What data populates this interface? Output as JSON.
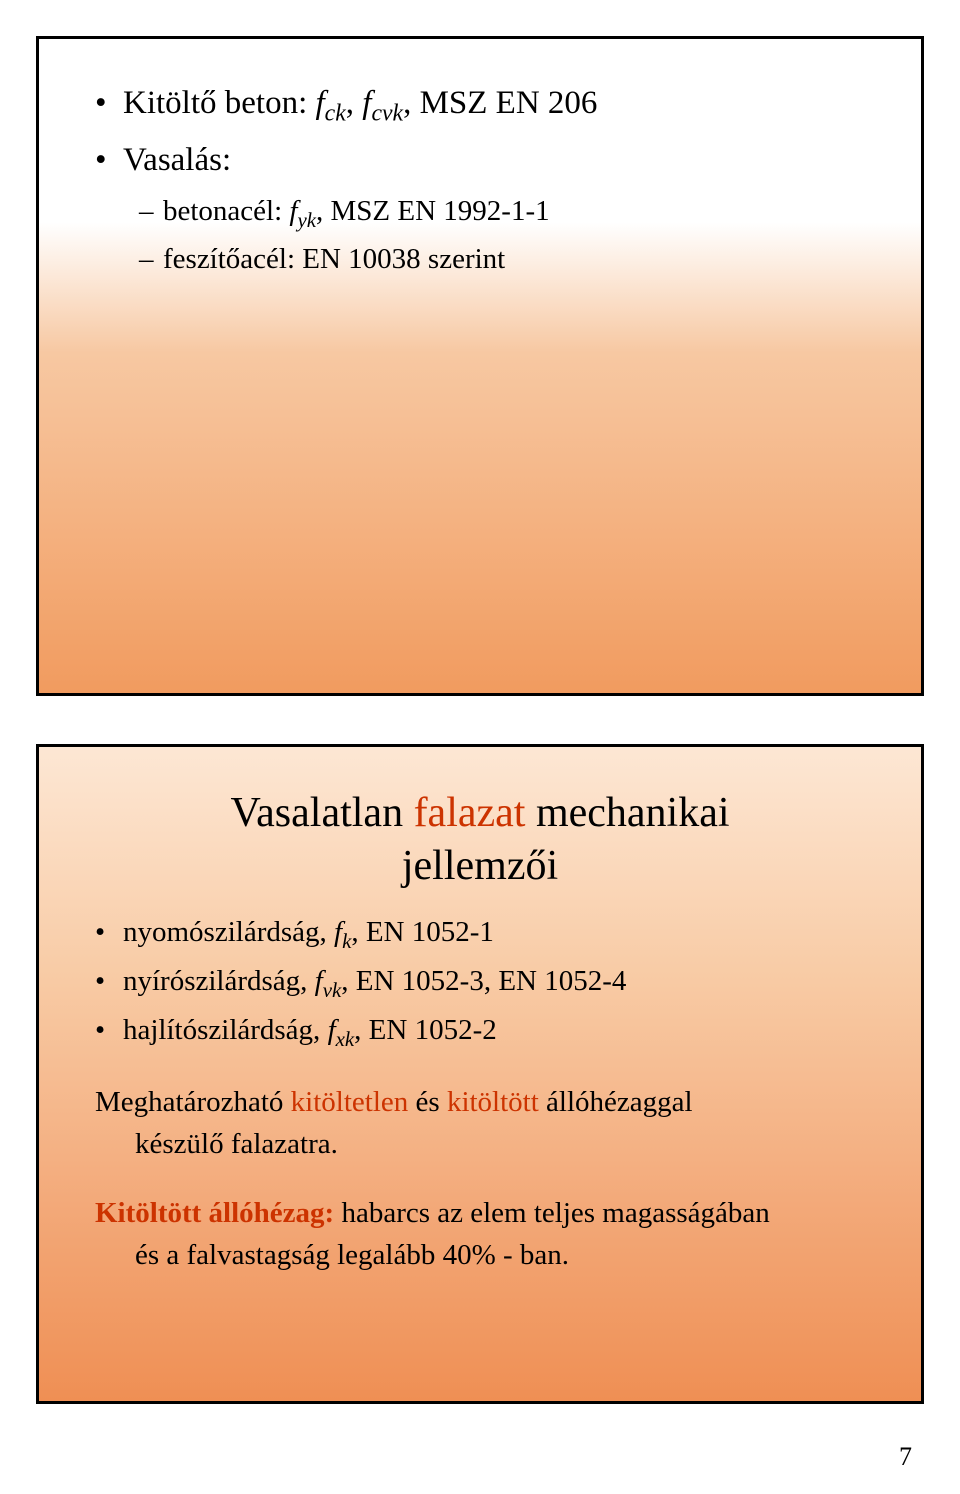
{
  "pageNumber": "7",
  "slide1": {
    "item1_pre": "Kitöltő beton: ",
    "item1_sym": "f",
    "item1_sub1": "ck",
    "item1_comma1": ", ",
    "item1_sym2": "f",
    "item1_sub2": "cvk",
    "item1_post": ", MSZ EN 206",
    "item2": "Vasalás:",
    "sub1_pre": "betonacél: ",
    "sub1_sym": "f",
    "sub1_sub": "yk",
    "sub1_post": ", MSZ EN 1992-1-1",
    "sub2": "feszítőacél: EN 10038 szerint"
  },
  "slide2": {
    "title1": "Vasalatlan ",
    "title2_red": "falazat",
    "title3": " mechanikai",
    "title4": "jellemzői",
    "li1_pre": "nyomószilárdság, ",
    "li1_sym": "f",
    "li1_sub": "k",
    "li1_post": ", EN 1052-1",
    "li2_pre": "nyírószilárdság, ",
    "li2_sym": "f",
    "li2_sub": "vk",
    "li2_post": ", EN 1052-3, EN 1052-4",
    "li3_pre": "hajlítószilárdság, ",
    "li3_sym": "f",
    "li3_sub": "xk",
    "li3_post": ", EN 1052-2",
    "p1_a": "Meghatározható ",
    "p1_red1": "kitöltetlen",
    "p1_b": " és ",
    "p1_red2": "kitöltött",
    "p1_c": " állóhézaggal",
    "p1_d": "készülő falazatra.",
    "p2_a": "Kitöltött állóhézag:",
    "p2_b": " habarcs az elem teljes magasságában",
    "p2_c": "és a falvastagság legalább 40% - ban."
  }
}
